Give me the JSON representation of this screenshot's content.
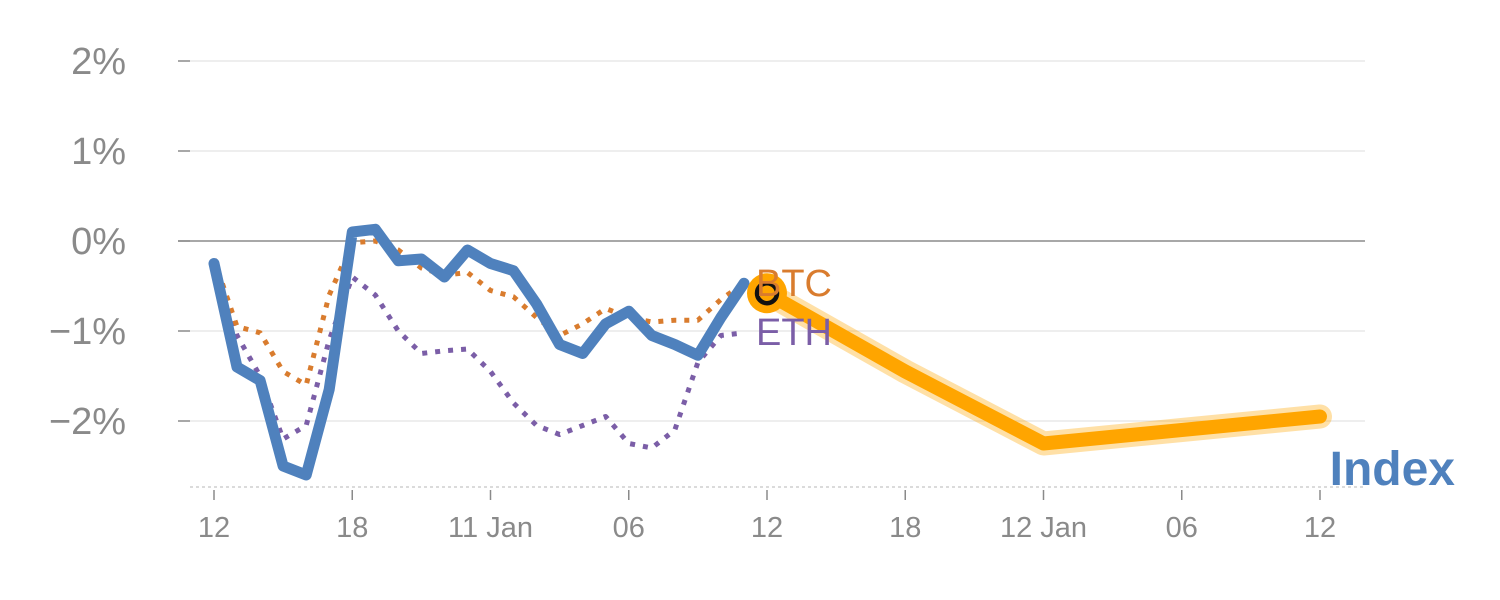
{
  "chart_data": {
    "type": "line",
    "y_ticks": [
      "2%",
      "1%",
      "0%",
      "−1%",
      "−2%"
    ],
    "y_tick_values": [
      2,
      1,
      0,
      -1,
      -2
    ],
    "ylim": [
      -2.75,
      2.2
    ],
    "x_ticks": [
      "12",
      "18",
      "11 Jan",
      "06",
      "12",
      "18",
      "12 Jan",
      "06",
      "12"
    ],
    "x_range": [
      0,
      48
    ],
    "x_tick_positions": [
      0,
      6,
      12,
      18,
      24,
      30,
      36,
      42,
      48
    ],
    "zero_line": true,
    "grid": true,
    "series": [
      {
        "name": "Index",
        "color": "#4f81bd",
        "style": "solid",
        "points": [
          [
            0,
            -0.25
          ],
          [
            1,
            -1.4
          ],
          [
            2,
            -1.55
          ],
          [
            3,
            -2.5
          ],
          [
            4,
            -2.6
          ],
          [
            5,
            -1.65
          ],
          [
            6,
            0.1
          ],
          [
            7,
            0.13
          ],
          [
            8,
            -0.22
          ],
          [
            9,
            -0.2
          ],
          [
            10,
            -0.4
          ],
          [
            11,
            -0.1
          ],
          [
            12,
            -0.25
          ],
          [
            13,
            -0.33
          ],
          [
            14,
            -0.7
          ],
          [
            15,
            -1.15
          ],
          [
            16,
            -1.25
          ],
          [
            17,
            -0.92
          ],
          [
            18,
            -0.78
          ],
          [
            19,
            -1.05
          ],
          [
            20,
            -1.15
          ],
          [
            21,
            -1.27
          ],
          [
            22,
            -0.85
          ],
          [
            23,
            -0.47
          ]
        ]
      },
      {
        "name": "BTC",
        "color": "#d97c2e",
        "style": "dotted",
        "points": [
          [
            0,
            -0.2
          ],
          [
            1,
            -0.95
          ],
          [
            2,
            -1.02
          ],
          [
            3,
            -1.45
          ],
          [
            4,
            -1.6
          ],
          [
            5,
            -0.6
          ],
          [
            6,
            -0.02
          ],
          [
            7,
            0.0
          ],
          [
            8,
            -0.1
          ],
          [
            9,
            -0.3
          ],
          [
            10,
            -0.38
          ],
          [
            11,
            -0.35
          ],
          [
            12,
            -0.55
          ],
          [
            13,
            -0.62
          ],
          [
            14,
            -0.85
          ],
          [
            15,
            -1.05
          ],
          [
            16,
            -0.92
          ],
          [
            17,
            -0.75
          ],
          [
            18,
            -0.85
          ],
          [
            19,
            -0.9
          ],
          [
            20,
            -0.88
          ],
          [
            21,
            -0.88
          ],
          [
            22,
            -0.65
          ],
          [
            23,
            -0.47
          ]
        ]
      },
      {
        "name": "ETH",
        "color": "#7b5ea7",
        "style": "dotted",
        "points": [
          [
            0,
            -0.2
          ],
          [
            1,
            -1.05
          ],
          [
            2,
            -1.5
          ],
          [
            3,
            -2.2
          ],
          [
            4,
            -2.05
          ],
          [
            5,
            -1.1
          ],
          [
            6,
            -0.4
          ],
          [
            7,
            -0.6
          ],
          [
            8,
            -1.0
          ],
          [
            9,
            -1.25
          ],
          [
            10,
            -1.22
          ],
          [
            11,
            -1.2
          ],
          [
            12,
            -1.45
          ],
          [
            13,
            -1.8
          ],
          [
            14,
            -2.05
          ],
          [
            15,
            -2.15
          ],
          [
            16,
            -2.05
          ],
          [
            17,
            -1.95
          ],
          [
            18,
            -2.25
          ],
          [
            19,
            -2.3
          ],
          [
            20,
            -2.1
          ],
          [
            21,
            -1.35
          ],
          [
            22,
            -1.05
          ],
          [
            23,
            -1.02
          ]
        ]
      },
      {
        "name": "",
        "color": "#ffa500",
        "style": "projection",
        "points": [
          [
            24,
            -0.58
          ],
          [
            30,
            -1.45
          ],
          [
            36,
            -2.25
          ],
          [
            42,
            -2.1
          ],
          [
            48,
            -1.95
          ]
        ]
      }
    ],
    "current_marker": {
      "x": 24,
      "y": -0.58
    }
  }
}
